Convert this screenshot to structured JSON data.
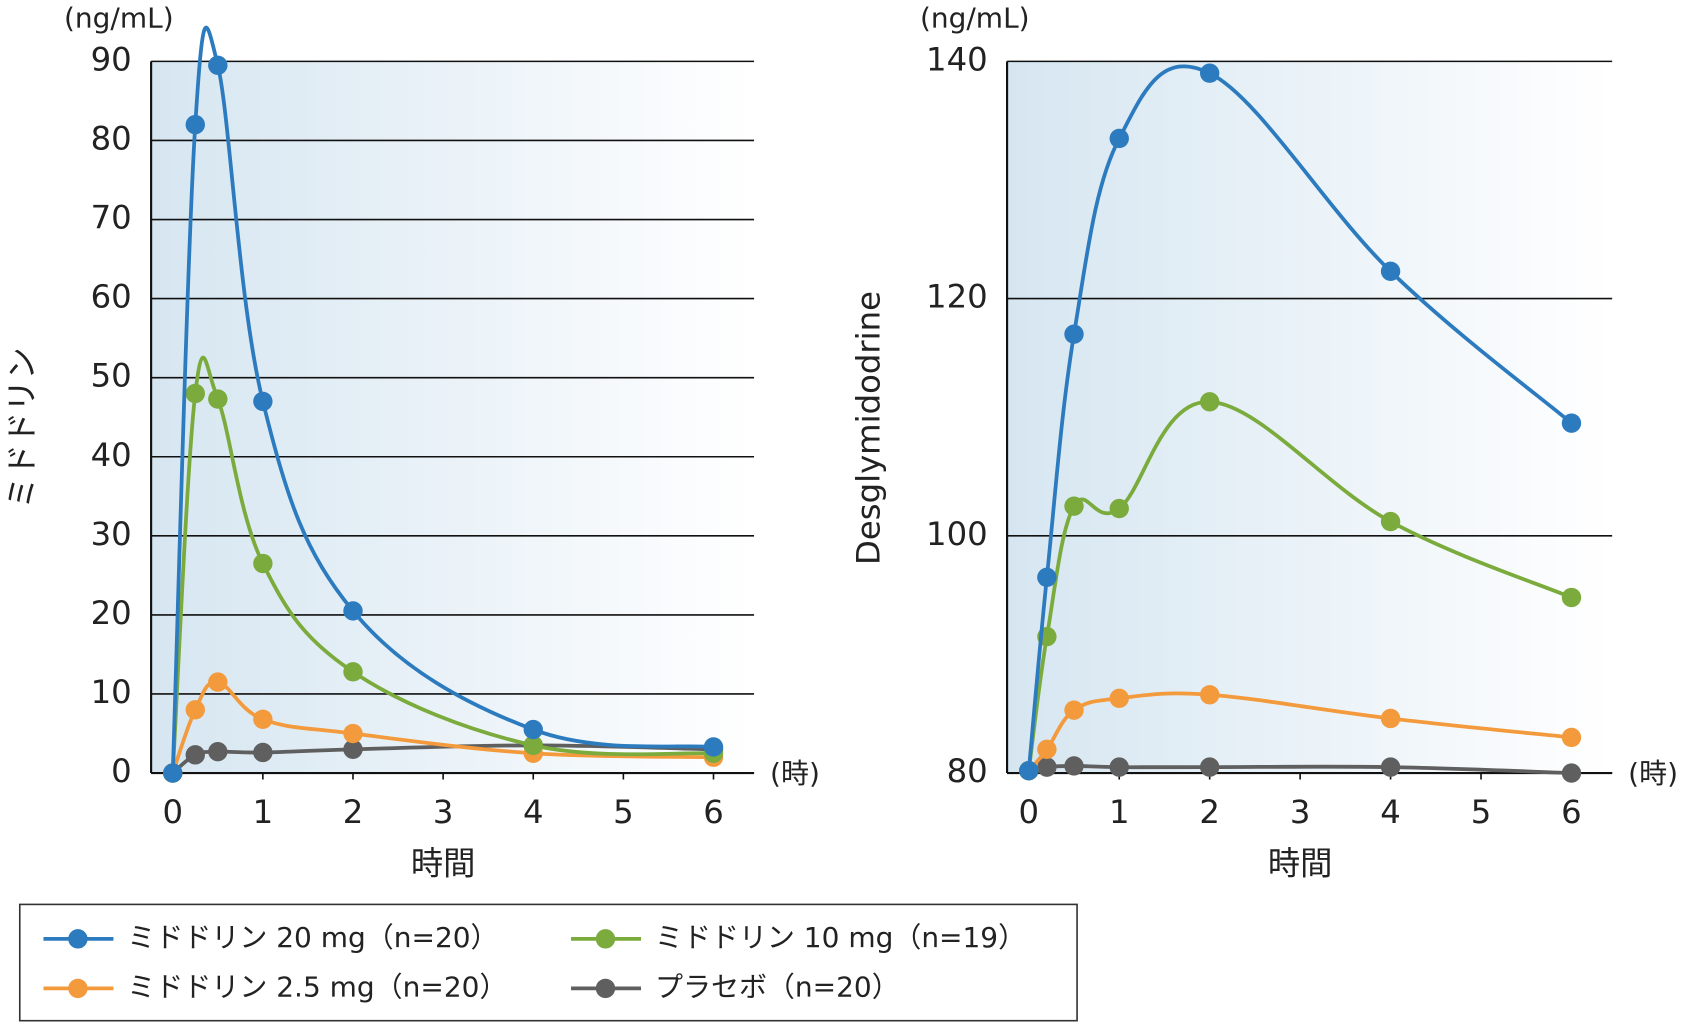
{
  "chart_data": [
    {
      "type": "line",
      "y_label": "ミドドリン",
      "y_unit": "(ng/mL)",
      "x_label": "時間",
      "x_unit": "(時)",
      "x": [
        0,
        0.25,
        0.5,
        1,
        2,
        4,
        6
      ],
      "xlim": [
        -0.24,
        6.45
      ],
      "xticks": [
        0,
        1,
        2,
        3,
        4,
        5,
        6
      ],
      "ylim": [
        0,
        90
      ],
      "yticks": [
        0,
        10,
        20,
        30,
        40,
        50,
        60,
        70,
        80,
        90
      ],
      "grid": true,
      "series": [
        {
          "name": "ミドドリン 20 mg（n=20）",
          "color": "#2c7bbf",
          "values": [
            0,
            82,
            89.5,
            47,
            20.5,
            5.5,
            3.3
          ]
        },
        {
          "name": "ミドドリン 10 mg（n=19）",
          "color": "#7aab3c",
          "values": [
            0,
            48,
            47.3,
            26.5,
            12.8,
            3.5,
            2.5
          ]
        },
        {
          "name": "ミドドリン 2.5 mg（n=20）",
          "color": "#f39a3d",
          "values": [
            0,
            8,
            11.5,
            6.8,
            5,
            2.5,
            2
          ]
        },
        {
          "name": "プラセボ（n=20）",
          "color": "#5f5f5f",
          "values": [
            0,
            2.3,
            2.7,
            2.6,
            3,
            3.5,
            3
          ]
        }
      ]
    },
    {
      "type": "line",
      "y_label": "Desglymidodrine",
      "y_unit": "(ng/mL)",
      "x_label": "時間",
      "x_unit": "(時)",
      "x": [
        0,
        0.2,
        0.5,
        1,
        2,
        4,
        6
      ],
      "xlim": [
        -0.24,
        6.45
      ],
      "xticks": [
        0,
        1,
        2,
        3,
        4,
        5,
        6
      ],
      "ylim": [
        80,
        140
      ],
      "yticks": [
        80,
        100,
        120,
        140
      ],
      "grid": true,
      "series": [
        {
          "color": "#2c7bbf",
          "values": [
            80.2,
            96.5,
            117,
            133.5,
            139,
            122.3,
            109.5
          ]
        },
        {
          "color": "#7aab3c",
          "values": [
            80.2,
            91.5,
            102.5,
            102.3,
            111.3,
            101.2,
            94.8
          ]
        },
        {
          "color": "#f39a3d",
          "values": [
            80.2,
            82,
            85.3,
            86.3,
            86.6,
            84.6,
            83
          ]
        },
        {
          "color": "#5f5f5f",
          "values": [
            80.2,
            80.5,
            80.6,
            80.5,
            80.5,
            80.5,
            80
          ]
        }
      ]
    }
  ]
}
